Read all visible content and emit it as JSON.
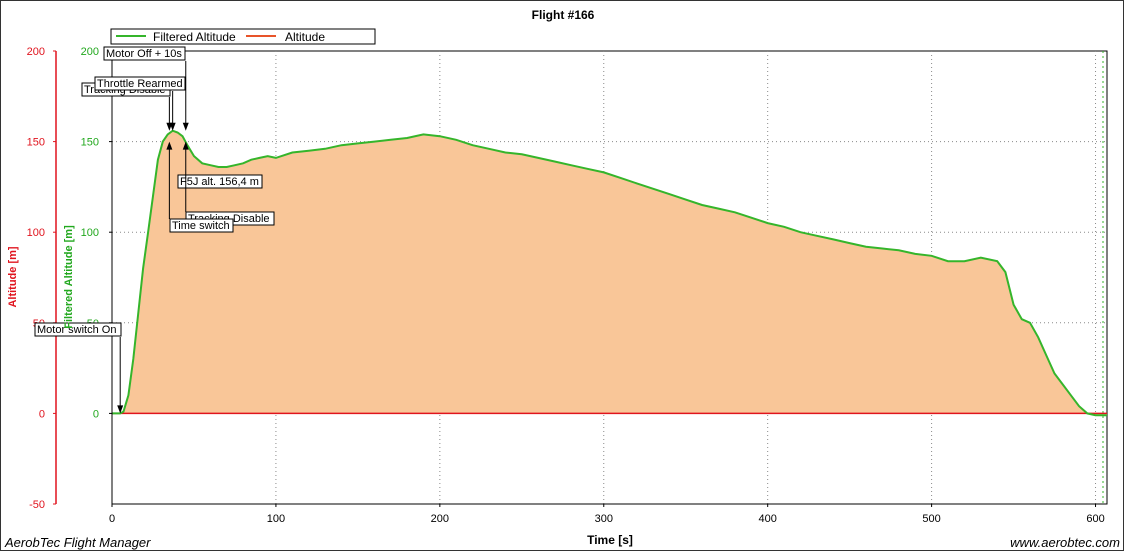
{
  "chart_data": {
    "type": "area",
    "title": "Flight #166",
    "xlabel": "Time [s]",
    "ylabel_left": "Altitude [m]",
    "ylabel_right": "Filtered Altitude [m]",
    "xlim": [
      0,
      607
    ],
    "ylim": [
      -50,
      200
    ],
    "x_ticks": [
      0,
      100,
      200,
      300,
      400,
      500,
      600
    ],
    "y_ticks": [
      -50,
      0,
      50,
      100,
      150,
      200
    ],
    "y_ticks_green": [
      0,
      50,
      100,
      150,
      200
    ],
    "grid": true,
    "legend_position": "top-left",
    "series": [
      {
        "name": "Filtered Altitude",
        "color": "#35b52b",
        "fill": "#f9c698",
        "x": [
          0,
          5,
          7,
          10,
          13,
          16,
          19,
          22,
          25,
          28,
          31,
          34,
          37,
          40,
          43,
          46,
          50,
          55,
          60,
          65,
          70,
          75,
          80,
          85,
          90,
          95,
          100,
          110,
          120,
          130,
          140,
          150,
          160,
          170,
          180,
          190,
          200,
          210,
          220,
          230,
          240,
          250,
          260,
          270,
          280,
          290,
          300,
          310,
          320,
          330,
          340,
          350,
          360,
          370,
          380,
          390,
          400,
          410,
          420,
          430,
          440,
          450,
          460,
          470,
          480,
          490,
          500,
          510,
          520,
          530,
          540,
          545,
          550,
          555,
          560,
          565,
          570,
          575,
          580,
          585,
          590,
          595,
          600,
          607
        ],
        "values": [
          0,
          0,
          1,
          10,
          30,
          55,
          80,
          100,
          120,
          140,
          150,
          154,
          156,
          155,
          153,
          148,
          142,
          138,
          137,
          136,
          136,
          137,
          138,
          140,
          141,
          142,
          141,
          144,
          145,
          146,
          148,
          149,
          150,
          151,
          152,
          154,
          153,
          151,
          148,
          146,
          144,
          143,
          141,
          139,
          137,
          135,
          133,
          130,
          127,
          124,
          121,
          118,
          115,
          113,
          111,
          108,
          105,
          103,
          100,
          98,
          96,
          94,
          92,
          91,
          90,
          88,
          87,
          84,
          84,
          86,
          84,
          78,
          60,
          52,
          50,
          42,
          32,
          22,
          16,
          10,
          4,
          0,
          -1,
          -1
        ]
      },
      {
        "name": "Altitude",
        "color": "#e8542a",
        "x": [
          0,
          607
        ],
        "values": [
          0,
          0
        ]
      }
    ],
    "annotations": [
      {
        "label": "Motor switch On",
        "x": 5,
        "y": 0
      },
      {
        "label": "Tracking Disable",
        "x": 35,
        "y": 156
      },
      {
        "label": "Throttle Rearmed",
        "x": 37,
        "y": 156
      },
      {
        "label": "Motor Off + 10s",
        "x": 45,
        "y": 156
      },
      {
        "label": "F5J alt. 156,4 m",
        "x": 40,
        "y": 156.4
      },
      {
        "label": "Tracking Disable",
        "x": 45,
        "y": 150
      },
      {
        "label": "Time switch",
        "x": 35,
        "y": 150
      }
    ]
  },
  "footer": {
    "left": "AerobTec Flight Manager",
    "right": "www.aerobtec.com"
  }
}
